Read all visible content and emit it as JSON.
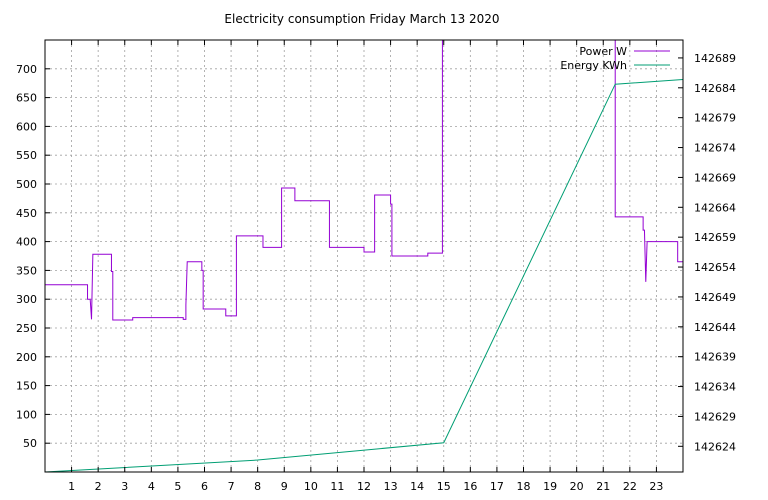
{
  "chart_data": {
    "type": "line",
    "title": "Electricity consumption Friday March 13 2020",
    "x_ticks": [
      1,
      2,
      3,
      4,
      5,
      6,
      7,
      8,
      9,
      10,
      11,
      12,
      13,
      14,
      15,
      16,
      17,
      18,
      19,
      20,
      21,
      22,
      23
    ],
    "xlim": [
      0,
      24
    ],
    "y_ticks": [
      50,
      100,
      150,
      200,
      250,
      300,
      350,
      400,
      450,
      500,
      550,
      600,
      650,
      700
    ],
    "ylim": [
      0,
      750
    ],
    "y2_ticks": [
      142624,
      142629,
      142634,
      142639,
      142644,
      142649,
      142654,
      142659,
      142664,
      142669,
      142674,
      142679,
      142684,
      142689
    ],
    "y2lim": [
      142619.7,
      142692.0
    ],
    "grid": true,
    "legend_position": "top-right",
    "series": [
      {
        "name": "Power W",
        "axis": "y1",
        "color": "#9400d3",
        "points": [
          [
            0.0,
            325
          ],
          [
            1.6,
            325
          ],
          [
            1.6,
            300
          ],
          [
            1.7,
            300
          ],
          [
            1.75,
            265
          ],
          [
            1.8,
            378
          ],
          [
            2.5,
            378
          ],
          [
            2.5,
            348
          ],
          [
            2.55,
            348
          ],
          [
            2.55,
            264
          ],
          [
            3.3,
            264
          ],
          [
            3.3,
            268
          ],
          [
            5.2,
            268
          ],
          [
            5.2,
            265
          ],
          [
            5.3,
            265
          ],
          [
            5.3,
            290
          ],
          [
            5.35,
            365
          ],
          [
            5.9,
            365
          ],
          [
            5.9,
            350
          ],
          [
            5.95,
            350
          ],
          [
            5.95,
            283
          ],
          [
            6.8,
            283
          ],
          [
            6.8,
            271
          ],
          [
            7.2,
            271
          ],
          [
            7.2,
            410
          ],
          [
            8.2,
            410
          ],
          [
            8.2,
            390
          ],
          [
            8.9,
            390
          ],
          [
            8.9,
            493
          ],
          [
            9.4,
            493
          ],
          [
            9.4,
            471
          ],
          [
            10.7,
            471
          ],
          [
            10.7,
            390
          ],
          [
            12.0,
            390
          ],
          [
            12.0,
            382
          ],
          [
            12.4,
            382
          ],
          [
            12.4,
            481
          ],
          [
            13.0,
            481
          ],
          [
            13.0,
            465
          ],
          [
            13.05,
            465
          ],
          [
            13.05,
            375
          ],
          [
            14.4,
            375
          ],
          [
            14.4,
            380
          ],
          [
            14.95,
            380
          ],
          [
            14.95,
            750
          ],
          [
            15.0,
            750
          ],
          [
            15.0,
            752
          ],
          [
            21.45,
            752
          ],
          [
            21.45,
            443
          ],
          [
            22.5,
            443
          ],
          [
            22.5,
            420
          ],
          [
            22.55,
            420
          ],
          [
            22.6,
            330
          ],
          [
            22.65,
            400
          ],
          [
            23.8,
            400
          ],
          [
            23.8,
            365
          ],
          [
            24.0,
            365
          ]
        ]
      },
      {
        "name": "Energy KWh",
        "axis": "y2",
        "color": "#009e73",
        "points": [
          [
            0.0,
            142619.7
          ],
          [
            8.0,
            142621.7
          ],
          [
            15.0,
            142624.6
          ],
          [
            21.45,
            142684.6
          ],
          [
            24.0,
            142685.4
          ]
        ]
      }
    ]
  }
}
